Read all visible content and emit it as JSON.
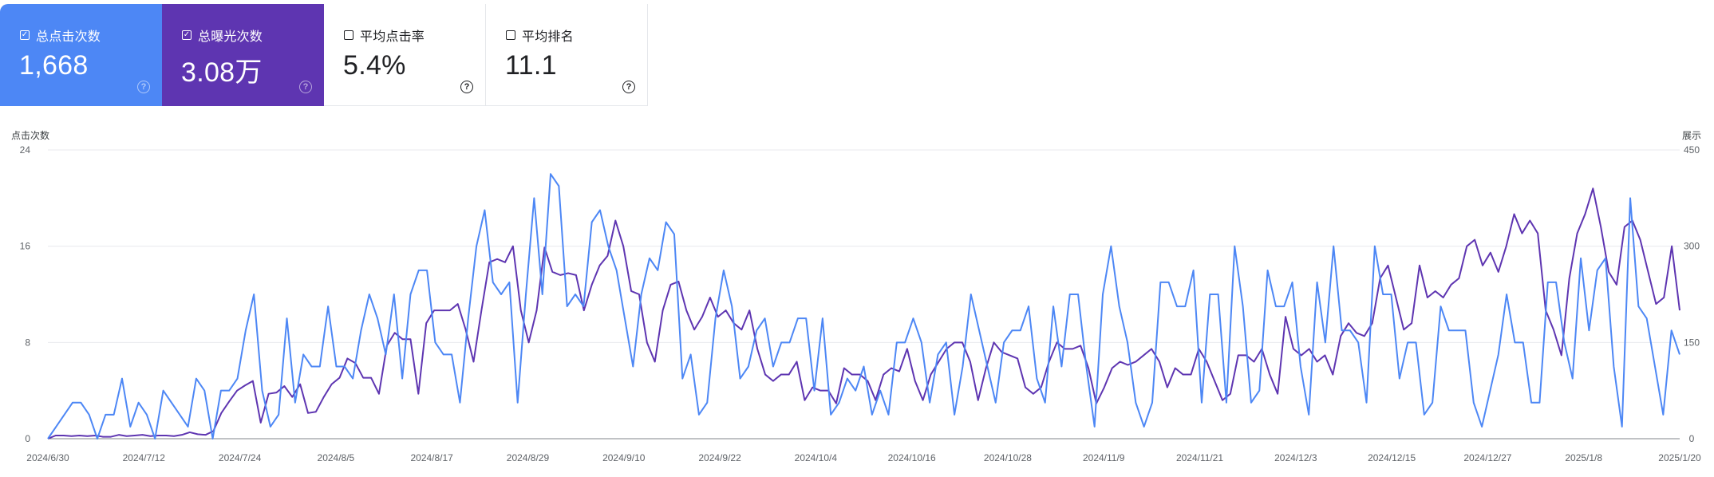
{
  "cards": [
    {
      "title": "总点击次数",
      "value": "1,668",
      "checked": true,
      "color": "#4d87f5"
    },
    {
      "title": "总曝光次数",
      "value": "3.08万",
      "checked": true,
      "color": "#5e35b1"
    },
    {
      "title": "平均点击率",
      "value": "5.4%",
      "checked": false
    },
    {
      "title": "平均排名",
      "value": "11.1",
      "checked": false
    }
  ],
  "help_glyph": "?",
  "check_glyph": "✓",
  "chart_data": {
    "type": "line",
    "y_left_label": "点击次数",
    "y_right_label": "展示",
    "y_left_ticks": [
      "0",
      "8",
      "16",
      "24"
    ],
    "y_right_ticks": [
      "0",
      "150",
      "300",
      "450"
    ],
    "ylim_left": [
      0,
      24
    ],
    "ylim_right": [
      0,
      450
    ],
    "x_tick_labels": [
      "2024/6/30",
      "2024/7/12",
      "2024/7/24",
      "2024/8/5",
      "2024/8/17",
      "2024/8/29",
      "2024/9/10",
      "2024/9/22",
      "2024/10/4",
      "2024/10/16",
      "2024/10/28",
      "2024/11/9",
      "2024/11/21",
      "2024/12/3",
      "2024/12/15",
      "2024/12/27",
      "2025/1/8",
      "2025/1/20"
    ],
    "x_start": "2024/6/30",
    "grid": true,
    "series": [
      {
        "name": "总点击次数",
        "axis": "left",
        "color": "#4d87f5",
        "values": [
          0,
          1,
          2,
          3,
          3,
          2,
          0,
          2,
          2,
          5,
          1,
          3,
          2,
          0,
          4,
          3,
          2,
          1,
          5,
          4,
          0,
          4,
          4,
          5,
          9,
          12,
          4,
          1,
          2,
          10,
          3,
          7,
          6,
          6,
          11,
          6,
          6,
          5,
          9,
          12,
          10,
          7,
          12,
          5,
          12,
          14,
          14,
          8,
          7,
          7,
          3,
          10,
          16,
          19,
          13,
          12,
          13,
          3,
          12,
          20,
          12,
          22,
          21,
          11,
          12,
          11,
          18,
          19,
          16,
          14,
          10,
          6,
          12,
          15,
          14,
          18,
          17,
          5,
          7,
          2,
          3,
          10,
          14,
          11,
          5,
          6,
          9,
          10,
          6,
          8,
          8,
          10,
          10,
          4,
          10,
          2,
          3,
          5,
          4,
          6,
          2,
          4,
          2,
          8,
          8,
          10,
          8,
          3,
          7,
          8,
          2,
          6,
          12,
          9,
          6,
          3,
          8,
          9,
          9,
          11,
          5,
          3,
          11,
          6,
          12,
          12,
          6,
          1,
          12,
          16,
          11,
          8,
          3,
          1,
          3,
          13,
          13,
          11,
          11,
          14,
          3,
          12,
          12,
          3,
          16,
          11,
          3,
          4,
          14,
          11,
          11,
          13,
          6,
          2,
          13,
          8,
          16,
          9,
          9,
          8,
          3,
          16,
          12,
          12,
          5,
          8,
          8,
          2,
          3,
          11,
          9,
          9,
          9,
          3,
          1,
          4,
          7,
          12,
          8,
          8,
          3,
          3,
          13,
          13,
          8,
          5,
          15,
          9,
          14,
          15,
          6,
          1,
          20,
          11,
          10,
          6,
          2,
          9,
          7
        ]
      },
      {
        "name": "总曝光次数",
        "axis": "right",
        "color": "#5e35b1",
        "values": [
          0,
          5,
          5,
          4,
          5,
          4,
          5,
          3,
          3,
          6,
          4,
          5,
          6,
          4,
          5,
          5,
          4,
          6,
          10,
          7,
          6,
          12,
          40,
          58,
          75,
          83,
          90,
          25,
          70,
          72,
          82,
          65,
          85,
          40,
          42,
          65,
          85,
          95,
          125,
          118,
          95,
          95,
          70,
          145,
          165,
          155,
          155,
          70,
          180,
          200,
          200,
          200,
          210,
          170,
          120,
          200,
          275,
          280,
          275,
          300,
          200,
          150,
          200,
          298,
          260,
          255,
          258,
          255,
          200,
          240,
          270,
          285,
          340,
          300,
          230,
          225,
          150,
          120,
          200,
          240,
          245,
          200,
          170,
          190,
          220,
          190,
          200,
          180,
          170,
          200,
          140,
          100,
          90,
          100,
          100,
          120,
          60,
          80,
          75,
          75,
          55,
          110,
          100,
          100,
          90,
          60,
          100,
          110,
          105,
          140,
          90,
          60,
          100,
          120,
          140,
          150,
          150,
          120,
          60,
          110,
          150,
          135,
          130,
          125,
          80,
          70,
          80,
          120,
          150,
          140,
          140,
          145,
          110,
          55,
          80,
          110,
          120,
          115,
          120,
          130,
          140,
          120,
          80,
          110,
          100,
          100,
          140,
          120,
          90,
          60,
          70,
          130,
          130,
          120,
          140,
          100,
          70,
          190,
          140,
          130,
          140,
          120,
          130,
          100,
          160,
          180,
          165,
          160,
          180,
          250,
          270,
          220,
          170,
          180,
          270,
          220,
          230,
          220,
          240,
          250,
          300,
          310,
          270,
          290,
          260,
          300,
          350,
          320,
          340,
          320,
          200,
          170,
          130,
          250,
          320,
          350,
          390,
          330,
          260,
          240,
          330,
          340,
          310,
          260,
          210,
          220,
          300,
          200
        ]
      }
    ]
  }
}
